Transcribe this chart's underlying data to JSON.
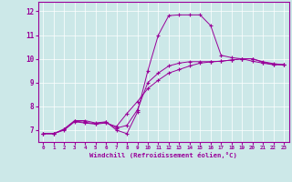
{
  "xlabel": "Windchill (Refroidissement éolien,°C)",
  "bg_color": "#cce8e8",
  "line_color": "#990099",
  "grid_color": "#aacccc",
  "xlim": [
    -0.5,
    23.5
  ],
  "ylim": [
    6.5,
    12.4
  ],
  "xticks": [
    0,
    1,
    2,
    3,
    4,
    5,
    6,
    7,
    8,
    9,
    10,
    11,
    12,
    13,
    14,
    15,
    16,
    17,
    18,
    19,
    20,
    21,
    22,
    23
  ],
  "yticks": [
    7,
    8,
    9,
    10,
    11,
    12
  ],
  "line1_x": [
    0,
    1,
    2,
    3,
    4,
    5,
    6,
    7,
    8,
    9,
    10,
    11,
    12,
    13,
    14,
    15,
    16,
    17,
    18,
    19,
    20,
    21,
    22,
    23
  ],
  "line1_y": [
    6.85,
    6.85,
    7.05,
    7.4,
    7.4,
    7.3,
    7.35,
    7.0,
    6.85,
    7.75,
    9.5,
    11.0,
    11.82,
    11.85,
    11.85,
    11.85,
    11.4,
    10.15,
    10.05,
    10.0,
    9.9,
    9.82,
    9.75,
    9.75
  ],
  "line2_x": [
    0,
    1,
    2,
    3,
    4,
    5,
    6,
    7,
    8,
    9,
    10,
    11,
    12,
    13,
    14,
    15,
    16,
    17,
    18,
    19,
    20,
    21,
    22,
    23
  ],
  "line2_y": [
    6.85,
    6.85,
    7.0,
    7.35,
    7.3,
    7.25,
    7.3,
    7.15,
    7.7,
    8.2,
    8.75,
    9.1,
    9.4,
    9.55,
    9.7,
    9.82,
    9.87,
    9.9,
    9.95,
    10.0,
    10.0,
    9.88,
    9.8,
    9.75
  ],
  "line3_x": [
    0,
    1,
    2,
    3,
    4,
    5,
    6,
    7,
    8,
    9,
    10,
    11,
    12,
    13,
    14,
    15,
    16,
    17,
    18,
    19,
    20,
    21,
    22,
    23
  ],
  "line3_y": [
    6.85,
    6.85,
    7.02,
    7.38,
    7.33,
    7.27,
    7.33,
    7.08,
    7.2,
    7.85,
    9.0,
    9.4,
    9.7,
    9.82,
    9.88,
    9.88,
    9.88,
    9.9,
    9.95,
    10.0,
    10.0,
    9.85,
    9.77,
    9.75
  ]
}
